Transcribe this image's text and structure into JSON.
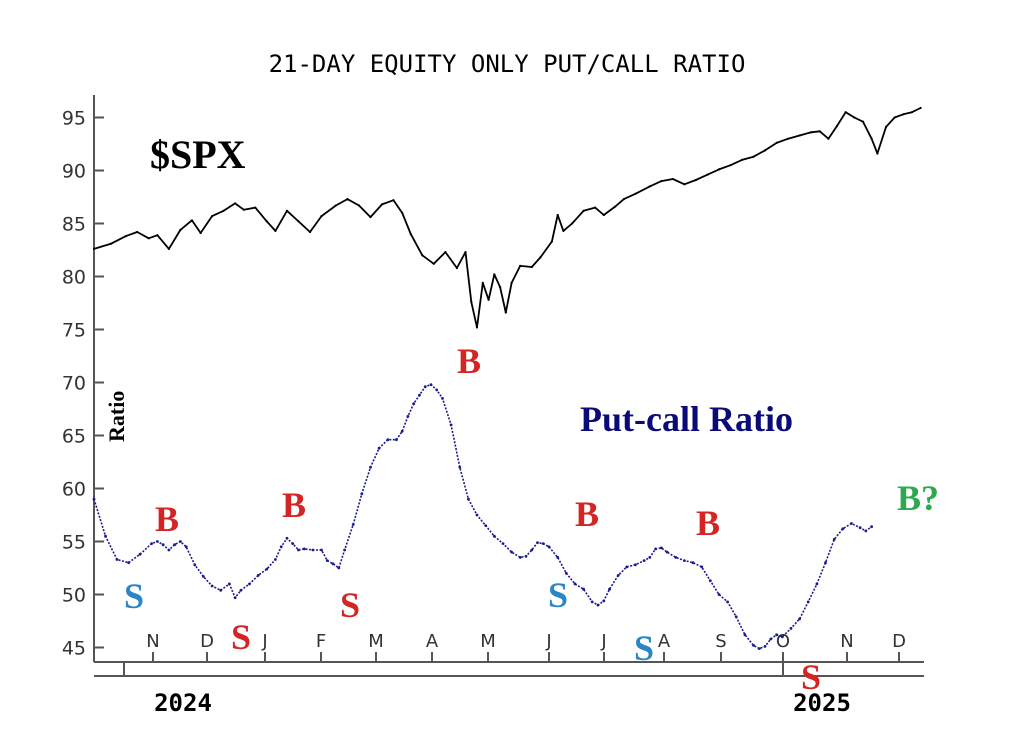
{
  "chart_data": {
    "type": "line",
    "title": "21-DAY EQUITY ONLY PUT/CALL RATIO",
    "ylabel": "Ratio",
    "ylim": [
      44,
      97
    ],
    "yticks": [
      95,
      90,
      85,
      80,
      75,
      70,
      65,
      60,
      55,
      50,
      45
    ],
    "month_labels": [
      "N",
      "D",
      "J",
      "F",
      "M",
      "A",
      "M",
      "J",
      "J",
      "A",
      "S",
      "O",
      "N",
      "D"
    ],
    "year_labels": [
      "2024",
      "2025"
    ],
    "series": [
      {
        "name": "$SPX",
        "color": "#000000",
        "note": "values scaled to the shared ratio axis",
        "points": [
          [
            0,
            82.6
          ],
          [
            6,
            83.1
          ],
          [
            11,
            83.8
          ],
          [
            15,
            84.2
          ],
          [
            19,
            83.6
          ],
          [
            22,
            83.9
          ],
          [
            26,
            82.6
          ],
          [
            30,
            84.4
          ],
          [
            34,
            85.3
          ],
          [
            37,
            84.1
          ],
          [
            41,
            85.7
          ],
          [
            45,
            86.2
          ],
          [
            49,
            86.9
          ],
          [
            52,
            86.3
          ],
          [
            56,
            86.5
          ],
          [
            60,
            85.2
          ],
          [
            63,
            84.3
          ],
          [
            67,
            86.2
          ],
          [
            71,
            85.2
          ],
          [
            75,
            84.2
          ],
          [
            79,
            85.7
          ],
          [
            84,
            86.7
          ],
          [
            88,
            87.3
          ],
          [
            92,
            86.7
          ],
          [
            96,
            85.6
          ],
          [
            100,
            86.8
          ],
          [
            104,
            87.2
          ],
          [
            107,
            86.0
          ],
          [
            110,
            84.0
          ],
          [
            114,
            82.0
          ],
          [
            118,
            81.2
          ],
          [
            122,
            82.3
          ],
          [
            126,
            80.8
          ],
          [
            129,
            82.3
          ],
          [
            131,
            77.6
          ],
          [
            133,
            75.2
          ],
          [
            135,
            79.4
          ],
          [
            137,
            77.8
          ],
          [
            139,
            80.2
          ],
          [
            141,
            79.0
          ],
          [
            143,
            76.6
          ],
          [
            145,
            79.4
          ],
          [
            148,
            81.0
          ],
          [
            152,
            80.9
          ],
          [
            155,
            81.8
          ],
          [
            159,
            83.3
          ],
          [
            161,
            85.8
          ],
          [
            163,
            84.3
          ],
          [
            166,
            85.0
          ],
          [
            170,
            86.2
          ],
          [
            174,
            86.5
          ],
          [
            177,
            85.8
          ],
          [
            181,
            86.6
          ],
          [
            184,
            87.3
          ],
          [
            188,
            87.8
          ],
          [
            193,
            88.5
          ],
          [
            197,
            89.0
          ],
          [
            201,
            89.2
          ],
          [
            205,
            88.7
          ],
          [
            209,
            89.1
          ],
          [
            213,
            89.6
          ],
          [
            217,
            90.1
          ],
          [
            221,
            90.5
          ],
          [
            225,
            91.0
          ],
          [
            229,
            91.3
          ],
          [
            233,
            91.9
          ],
          [
            237,
            92.6
          ],
          [
            241,
            93.0
          ],
          [
            245,
            93.3
          ],
          [
            249,
            93.6
          ],
          [
            252,
            93.7
          ],
          [
            255,
            93.0
          ],
          [
            258,
            94.2
          ],
          [
            261,
            95.5
          ],
          [
            264,
            95.0
          ],
          [
            267,
            94.6
          ],
          [
            270,
            93.0
          ],
          [
            272,
            91.6
          ],
          [
            275,
            94.1
          ],
          [
            278,
            95.0
          ],
          [
            281,
            95.3
          ],
          [
            284,
            95.5
          ],
          [
            287,
            95.9
          ]
        ]
      },
      {
        "name": "Put-call Ratio",
        "color": "#1a1a8c",
        "points": [
          [
            0,
            59.0
          ],
          [
            4,
            55.5
          ],
          [
            8,
            53.3
          ],
          [
            12,
            53.0
          ],
          [
            16,
            53.8
          ],
          [
            20,
            54.8
          ],
          [
            22,
            55.0
          ],
          [
            24,
            54.7
          ],
          [
            26,
            54.2
          ],
          [
            28,
            54.7
          ],
          [
            30,
            55.0
          ],
          [
            32,
            54.5
          ],
          [
            35,
            52.8
          ],
          [
            38,
            51.7
          ],
          [
            41,
            50.8
          ],
          [
            44,
            50.4
          ],
          [
            47,
            51.0
          ],
          [
            49,
            49.7
          ],
          [
            51,
            50.4
          ],
          [
            54,
            51.0
          ],
          [
            57,
            51.8
          ],
          [
            60,
            52.4
          ],
          [
            63,
            53.3
          ],
          [
            65,
            54.5
          ],
          [
            67,
            55.3
          ],
          [
            69,
            54.8
          ],
          [
            71,
            54.2
          ],
          [
            73,
            54.3
          ],
          [
            76,
            54.2
          ],
          [
            79,
            54.2
          ],
          [
            81,
            53.2
          ],
          [
            83,
            52.9
          ],
          [
            85,
            52.5
          ],
          [
            87,
            54.2
          ],
          [
            90,
            56.6
          ],
          [
            93,
            59.5
          ],
          [
            96,
            62.0
          ],
          [
            99,
            63.8
          ],
          [
            102,
            64.6
          ],
          [
            105,
            64.6
          ],
          [
            107,
            65.4
          ],
          [
            109,
            66.8
          ],
          [
            111,
            68.0
          ],
          [
            113,
            68.8
          ],
          [
            115,
            69.6
          ],
          [
            117,
            69.8
          ],
          [
            119,
            69.3
          ],
          [
            121,
            68.5
          ],
          [
            124,
            66.0
          ],
          [
            127,
            62.0
          ],
          [
            130,
            59.0
          ],
          [
            133,
            57.5
          ],
          [
            136,
            56.5
          ],
          [
            139,
            55.5
          ],
          [
            142,
            54.8
          ],
          [
            145,
            54.0
          ],
          [
            148,
            53.5
          ],
          [
            150,
            53.6
          ],
          [
            152,
            54.2
          ],
          [
            154,
            54.9
          ],
          [
            156,
            54.8
          ],
          [
            158,
            54.5
          ],
          [
            161,
            53.5
          ],
          [
            164,
            52.0
          ],
          [
            167,
            51.0
          ],
          [
            170,
            50.5
          ],
          [
            173,
            49.3
          ],
          [
            175,
            49.0
          ],
          [
            177,
            49.4
          ],
          [
            179,
            50.5
          ],
          [
            182,
            51.8
          ],
          [
            185,
            52.6
          ],
          [
            188,
            52.8
          ],
          [
            191,
            53.2
          ],
          [
            193,
            53.5
          ],
          [
            195,
            54.3
          ],
          [
            197,
            54.4
          ],
          [
            199,
            54.0
          ],
          [
            202,
            53.5
          ],
          [
            205,
            53.2
          ],
          [
            208,
            53.0
          ],
          [
            211,
            52.6
          ],
          [
            214,
            51.3
          ],
          [
            217,
            50.0
          ],
          [
            220,
            49.3
          ],
          [
            223,
            47.9
          ],
          [
            226,
            46.2
          ],
          [
            229,
            45.2
          ],
          [
            231,
            44.9
          ],
          [
            233,
            45.1
          ],
          [
            235,
            45.8
          ],
          [
            237,
            46.2
          ],
          [
            239,
            46.0
          ],
          [
            242,
            46.8
          ],
          [
            245,
            47.7
          ],
          [
            248,
            49.3
          ],
          [
            251,
            51.0
          ],
          [
            254,
            53.0
          ],
          [
            257,
            55.2
          ],
          [
            260,
            56.2
          ],
          [
            263,
            56.7
          ],
          [
            266,
            56.3
          ],
          [
            268,
            56.0
          ],
          [
            270,
            56.4
          ]
        ]
      }
    ],
    "annotations": [
      {
        "text": "$SPX",
        "color": "#000000"
      },
      {
        "text": "Put-call Ratio",
        "color": "#0a0a78"
      },
      {
        "text": "B",
        "color": "#d42424"
      },
      {
        "text": "B",
        "color": "#d42424"
      },
      {
        "text": "B",
        "color": "#d42424"
      },
      {
        "text": "B",
        "color": "#d42424"
      },
      {
        "text": "B",
        "color": "#d42424"
      },
      {
        "text": "B?",
        "color": "#2fa84f"
      },
      {
        "text": "S",
        "color": "#2a86c4"
      },
      {
        "text": "S",
        "color": "#2a86c4"
      },
      {
        "text": "S",
        "color": "#2a86c4"
      },
      {
        "text": "S",
        "color": "#d42424"
      },
      {
        "text": "S",
        "color": "#d42424"
      },
      {
        "text": "S",
        "color": "#d42424"
      }
    ]
  }
}
